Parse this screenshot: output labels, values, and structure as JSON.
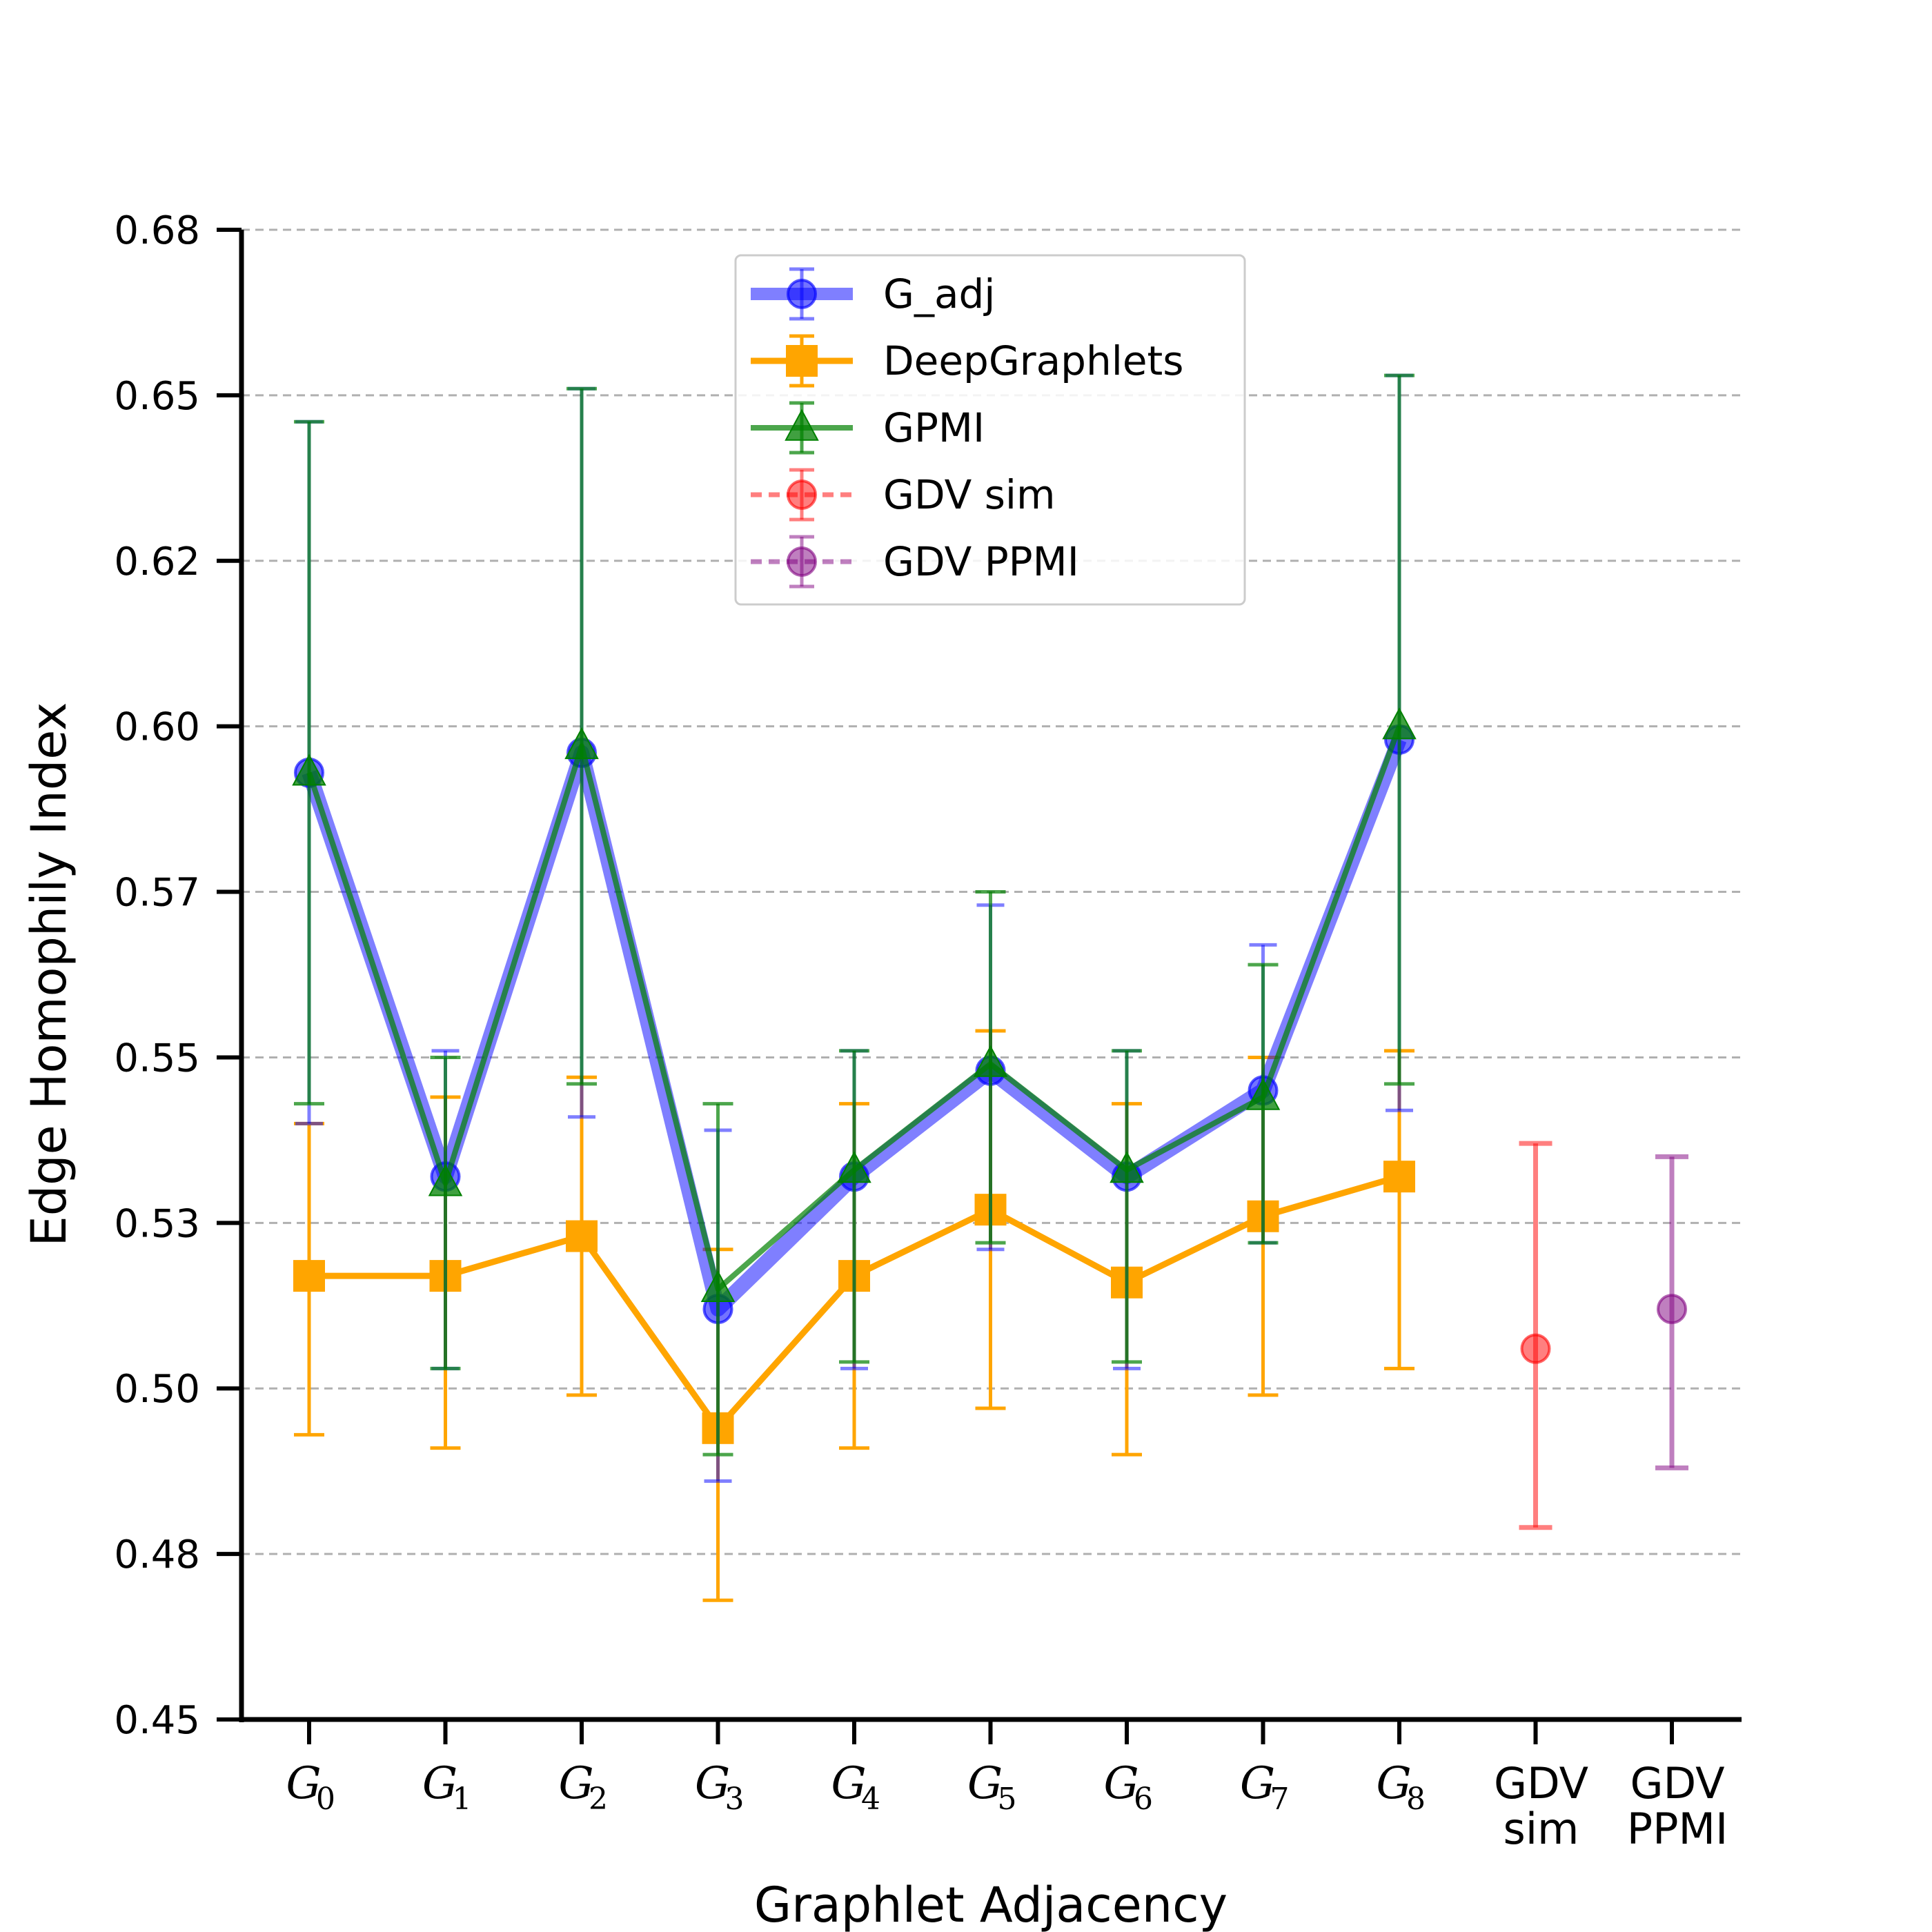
{
  "chart_data": {
    "type": "line",
    "title": "",
    "xlabel": "Graphlet Adjacency",
    "ylabel": "Edge Homophily Index",
    "ylim": [
      0.45,
      0.675
    ],
    "yticks": [
      0.45,
      0.475,
      0.5,
      0.525,
      0.55,
      0.575,
      0.6,
      0.625,
      0.65,
      0.675
    ],
    "ytick_labels": [
      "0.45",
      "0.48",
      "0.50",
      "0.53",
      "0.55",
      "0.57",
      "0.60",
      "0.62",
      "0.65",
      "0.68"
    ],
    "grid": "horizontal dashed",
    "legend_position": "top-center",
    "categories": [
      {
        "base": "G",
        "sub": "0"
      },
      {
        "base": "G",
        "sub": "1"
      },
      {
        "base": "G",
        "sub": "2"
      },
      {
        "base": "G",
        "sub": "3"
      },
      {
        "base": "G",
        "sub": "4"
      },
      {
        "base": "G",
        "sub": "5"
      },
      {
        "base": "G",
        "sub": "6"
      },
      {
        "base": "G",
        "sub": "7"
      },
      {
        "base": "G",
        "sub": "8"
      },
      {
        "lines": [
          "GDV",
          "sim"
        ]
      },
      {
        "lines": [
          "GDV",
          "PPMI"
        ]
      }
    ],
    "series": [
      {
        "name": "G_adj",
        "color": "#0000ff",
        "marker": "circle",
        "line": "solid-thick",
        "x": [
          0,
          1,
          2,
          3,
          4,
          5,
          6,
          7,
          8
        ],
        "values": [
          0.593,
          0.532,
          0.596,
          0.512,
          0.532,
          0.548,
          0.532,
          0.545,
          0.598
        ],
        "lower": [
          0.54,
          0.503,
          0.541,
          0.486,
          0.503,
          0.521,
          0.503,
          0.522,
          0.542
        ],
        "upper": [
          0.646,
          0.551,
          0.651,
          0.539,
          0.551,
          0.573,
          0.551,
          0.567,
          0.653
        ]
      },
      {
        "name": "DeepGraphlets",
        "color": "#ffa500",
        "marker": "square",
        "line": "solid",
        "x": [
          0,
          1,
          2,
          3,
          4,
          5,
          6,
          7,
          8
        ],
        "values": [
          0.517,
          0.517,
          0.523,
          0.494,
          0.517,
          0.527,
          0.516,
          0.526,
          0.532
        ],
        "lower": [
          0.493,
          0.491,
          0.499,
          0.468,
          0.491,
          0.497,
          0.49,
          0.499,
          0.503
        ],
        "upper": [
          0.54,
          0.544,
          0.547,
          0.521,
          0.543,
          0.554,
          0.543,
          0.55,
          0.551
        ]
      },
      {
        "name": "GPMI",
        "color": "#008000",
        "marker": "triangle",
        "line": "solid",
        "x": [
          0,
          1,
          2,
          3,
          4,
          5,
          6,
          7,
          8
        ],
        "values": [
          0.593,
          0.531,
          0.597,
          0.515,
          0.533,
          0.549,
          0.533,
          0.544,
          0.6
        ],
        "lower": [
          0.543,
          0.503,
          0.546,
          0.49,
          0.504,
          0.522,
          0.504,
          0.522,
          0.546
        ],
        "upper": [
          0.646,
          0.55,
          0.651,
          0.543,
          0.551,
          0.575,
          0.551,
          0.564,
          0.653
        ]
      },
      {
        "name": "GDV sim",
        "color": "#ff0000",
        "marker": "circle",
        "line": "dashed",
        "x": [
          9
        ],
        "values": [
          0.506
        ],
        "lower": [
          0.479
        ],
        "upper": [
          0.537
        ]
      },
      {
        "name": "GDV PPMI",
        "color": "#800080",
        "marker": "circle",
        "line": "dashed",
        "x": [
          10
        ],
        "values": [
          0.512
        ],
        "lower": [
          0.488
        ],
        "upper": [
          0.535
        ]
      }
    ]
  }
}
